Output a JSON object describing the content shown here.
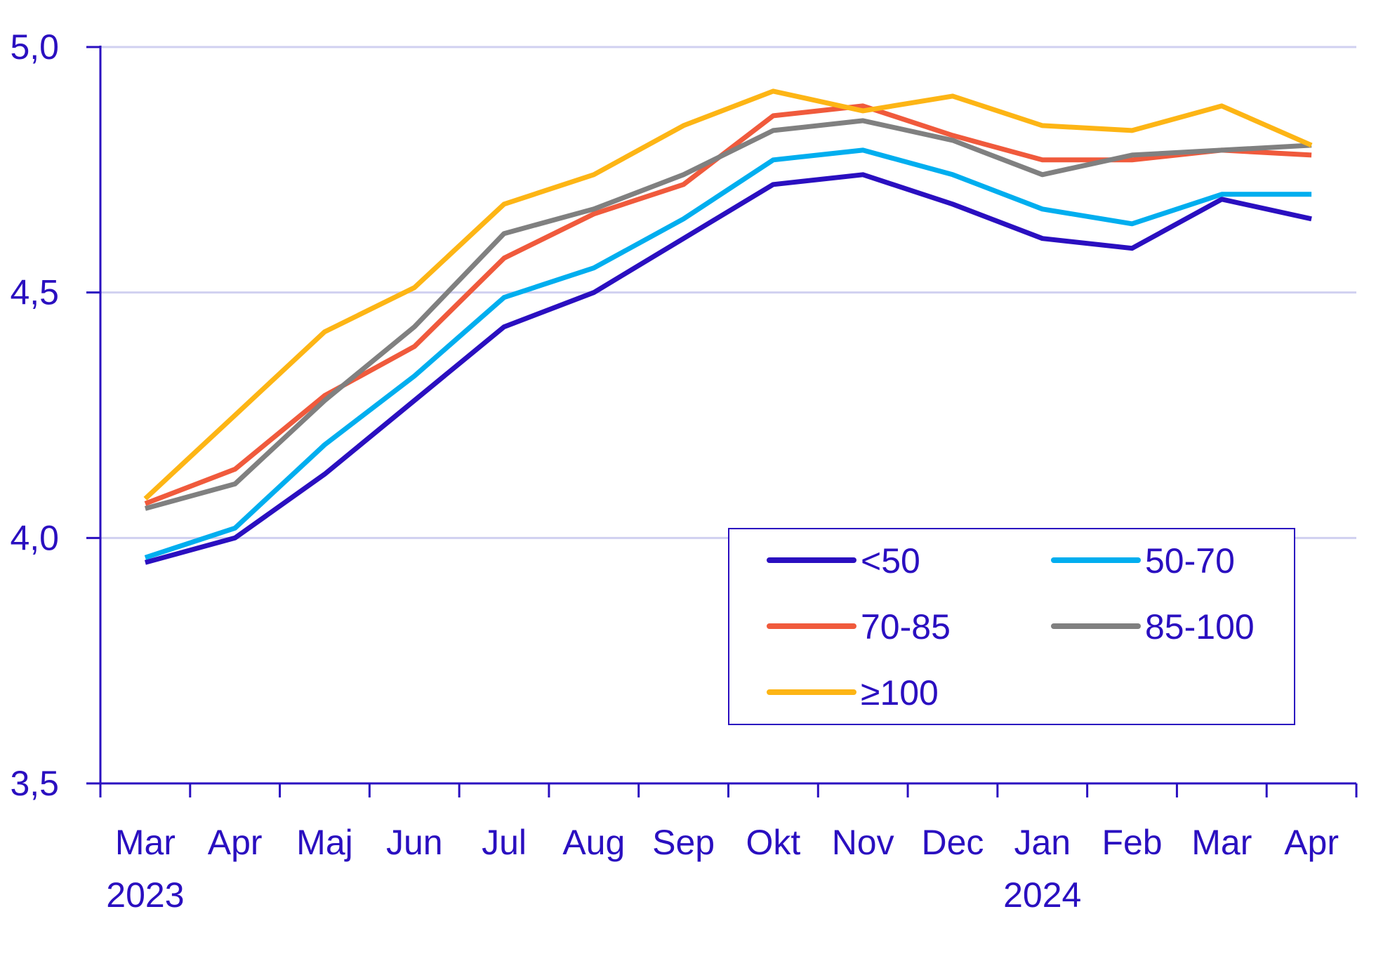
{
  "chart_data": {
    "type": "line",
    "title": "",
    "xlabel": "",
    "ylabel": "",
    "categories": [
      "Mar",
      "Apr",
      "Maj",
      "Jun",
      "Jul",
      "Aug",
      "Sep",
      "Okt",
      "Nov",
      "Dec",
      "Jan",
      "Feb",
      "Mar",
      "Apr"
    ],
    "year_labels": [
      {
        "index": 0,
        "text": "2023"
      },
      {
        "index": 10,
        "text": "2024"
      }
    ],
    "ylim": [
      3.5,
      5.0
    ],
    "yticks": [
      3.5,
      4.0,
      4.5,
      5.0
    ],
    "ytick_labels": [
      "3,5",
      "4,0",
      "4,5",
      "5,0"
    ],
    "grid": true,
    "legend_position": "bottom-right",
    "series": [
      {
        "name": "<50",
        "color": "#2A0FC0",
        "values": [
          3.95,
          4.0,
          4.13,
          4.28,
          4.43,
          4.5,
          4.61,
          4.72,
          4.74,
          4.68,
          4.61,
          4.59,
          4.69,
          4.65
        ]
      },
      {
        "name": "50-70",
        "color": "#00AEEF",
        "values": [
          3.96,
          4.02,
          4.19,
          4.33,
          4.49,
          4.55,
          4.65,
          4.77,
          4.79,
          4.74,
          4.67,
          4.64,
          4.7,
          4.7
        ]
      },
      {
        "name": "70-85",
        "color": "#F05A3C",
        "values": [
          4.07,
          4.14,
          4.29,
          4.39,
          4.57,
          4.66,
          4.72,
          4.86,
          4.88,
          4.82,
          4.77,
          4.77,
          4.79,
          4.78
        ]
      },
      {
        "name": "85-100",
        "color": "#808080",
        "values": [
          4.06,
          4.11,
          4.28,
          4.43,
          4.62,
          4.67,
          4.74,
          4.83,
          4.85,
          4.81,
          4.74,
          4.78,
          4.79,
          4.8
        ]
      },
      {
        "name": "≥100",
        "color": "#FDB515",
        "values": [
          4.08,
          4.25,
          4.42,
          4.51,
          4.68,
          4.74,
          4.84,
          4.91,
          4.87,
          4.9,
          4.84,
          4.83,
          4.88,
          4.8
        ]
      }
    ],
    "colors": {
      "axis": "#2A0FC0",
      "text": "#2A0FC0",
      "grid": "#D0D0F0"
    }
  }
}
